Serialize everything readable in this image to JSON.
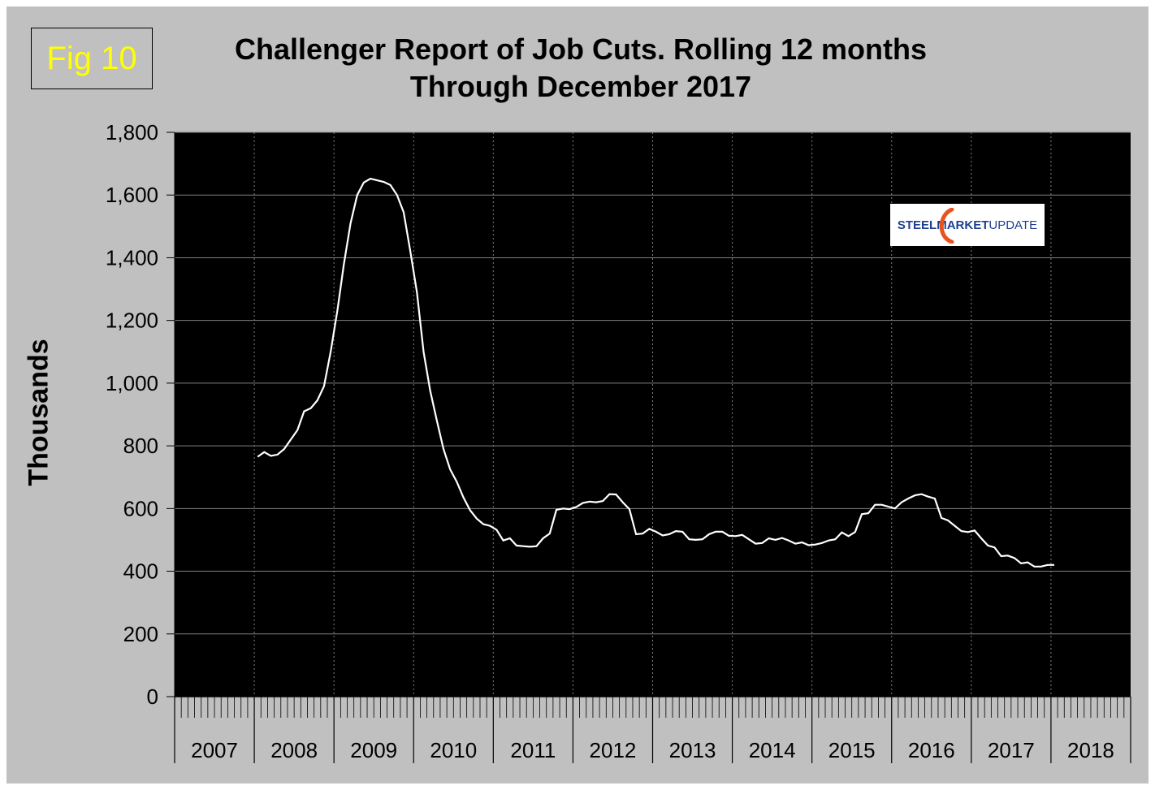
{
  "figure_label": "Fig 10",
  "logo": {
    "part1": "STEEL ",
    "part2": "MARKET ",
    "part3": "UPDATE"
  },
  "colors": {
    "frame_bg": "#c0c0c0",
    "plot_bg": "#000000",
    "line": "#ffffff",
    "gridline": "#808080",
    "badge_text": "#ffff00",
    "logo_orange": "#e8531e",
    "logo_blue": "#1f3f8f"
  },
  "chart_data": {
    "type": "line",
    "title_lines": [
      "Challenger Report of Job Cuts. Rolling 12 months",
      "Through December 2017"
    ],
    "xlabel": "",
    "ylabel": "Thousands",
    "ylim": [
      0,
      1800
    ],
    "yticks": [
      0,
      200,
      400,
      600,
      800,
      1000,
      1200,
      1400,
      1600,
      1800
    ],
    "ytick_labels": [
      "0",
      "200",
      "400",
      "600",
      "800",
      "1,000",
      "1,200",
      "1,400",
      "1,600",
      "1,800"
    ],
    "x_categories": [
      "2007",
      "2008",
      "2009",
      "2010",
      "2011",
      "2012",
      "2013",
      "2014",
      "2015",
      "2016",
      "2017",
      "2018"
    ],
    "x_start": "2007-01",
    "x_end": "2018-12",
    "grid": true,
    "legend": "none",
    "series": [
      {
        "values": [
          [
            "2008-01",
            765
          ],
          [
            "2008-02",
            780
          ],
          [
            "2008-03",
            768
          ],
          [
            "2008-04",
            772
          ],
          [
            "2008-05",
            790
          ],
          [
            "2008-06",
            820
          ],
          [
            "2008-07",
            850
          ],
          [
            "2008-08",
            910
          ],
          [
            "2008-09",
            920
          ],
          [
            "2008-10",
            945
          ],
          [
            "2008-11",
            990
          ],
          [
            "2008-12",
            1100
          ],
          [
            "2009-01",
            1230
          ],
          [
            "2009-02",
            1380
          ],
          [
            "2009-03",
            1510
          ],
          [
            "2009-04",
            1600
          ],
          [
            "2009-05",
            1640
          ],
          [
            "2009-06",
            1652
          ],
          [
            "2009-07",
            1647
          ],
          [
            "2009-08",
            1642
          ],
          [
            "2009-09",
            1632
          ],
          [
            "2009-10",
            1600
          ],
          [
            "2009-11",
            1545
          ],
          [
            "2009-12",
            1420
          ],
          [
            "2010-01",
            1290
          ],
          [
            "2010-02",
            1100
          ],
          [
            "2010-03",
            975
          ],
          [
            "2010-04",
            880
          ],
          [
            "2010-05",
            790
          ],
          [
            "2010-06",
            725
          ],
          [
            "2010-07",
            685
          ],
          [
            "2010-08",
            635
          ],
          [
            "2010-09",
            595
          ],
          [
            "2010-10",
            568
          ],
          [
            "2010-11",
            550
          ],
          [
            "2010-12",
            545
          ],
          [
            "2011-01",
            532
          ],
          [
            "2011-02",
            498
          ],
          [
            "2011-03",
            505
          ],
          [
            "2011-04",
            482
          ],
          [
            "2011-05",
            480
          ],
          [
            "2011-06",
            478
          ],
          [
            "2011-07",
            480
          ],
          [
            "2011-08",
            505
          ],
          [
            "2011-09",
            520
          ],
          [
            "2011-10",
            596
          ],
          [
            "2011-11",
            600
          ],
          [
            "2011-12",
            598
          ],
          [
            "2012-01",
            605
          ],
          [
            "2012-02",
            618
          ],
          [
            "2012-03",
            622
          ],
          [
            "2012-04",
            620
          ],
          [
            "2012-05",
            624
          ],
          [
            "2012-06",
            646
          ],
          [
            "2012-07",
            645
          ],
          [
            "2012-08",
            620
          ],
          [
            "2012-09",
            598
          ],
          [
            "2012-10",
            518
          ],
          [
            "2012-11",
            520
          ],
          [
            "2012-12",
            535
          ],
          [
            "2013-01",
            526
          ],
          [
            "2013-02",
            514
          ],
          [
            "2013-03",
            518
          ],
          [
            "2013-04",
            528
          ],
          [
            "2013-05",
            526
          ],
          [
            "2013-06",
            502
          ],
          [
            "2013-07",
            500
          ],
          [
            "2013-08",
            502
          ],
          [
            "2013-09",
            518
          ],
          [
            "2013-10",
            526
          ],
          [
            "2013-11",
            526
          ],
          [
            "2013-12",
            513
          ],
          [
            "2014-01",
            512
          ],
          [
            "2014-02",
            516
          ],
          [
            "2014-03",
            502
          ],
          [
            "2014-04",
            488
          ],
          [
            "2014-05",
            490
          ],
          [
            "2014-06",
            505
          ],
          [
            "2014-07",
            500
          ],
          [
            "2014-08",
            506
          ],
          [
            "2014-09",
            498
          ],
          [
            "2014-10",
            488
          ],
          [
            "2014-11",
            492
          ],
          [
            "2014-12",
            483
          ],
          [
            "2015-01",
            485
          ],
          [
            "2015-02",
            490
          ],
          [
            "2015-03",
            498
          ],
          [
            "2015-04",
            502
          ],
          [
            "2015-05",
            524
          ],
          [
            "2015-06",
            512
          ],
          [
            "2015-07",
            525
          ],
          [
            "2015-08",
            582
          ],
          [
            "2015-09",
            585
          ],
          [
            "2015-10",
            612
          ],
          [
            "2015-11",
            612
          ],
          [
            "2015-12",
            606
          ],
          [
            "2016-01",
            600
          ],
          [
            "2016-02",
            620
          ],
          [
            "2016-03",
            632
          ],
          [
            "2016-04",
            642
          ],
          [
            "2016-05",
            646
          ],
          [
            "2016-06",
            638
          ],
          [
            "2016-07",
            632
          ],
          [
            "2016-08",
            570
          ],
          [
            "2016-09",
            562
          ],
          [
            "2016-10",
            545
          ],
          [
            "2016-11",
            528
          ],
          [
            "2016-12",
            525
          ],
          [
            "2017-01",
            530
          ],
          [
            "2017-02",
            505
          ],
          [
            "2017-03",
            482
          ],
          [
            "2017-04",
            476
          ],
          [
            "2017-05",
            448
          ],
          [
            "2017-06",
            450
          ],
          [
            "2017-07",
            442
          ],
          [
            "2017-08",
            425
          ],
          [
            "2017-09",
            428
          ],
          [
            "2017-10",
            415
          ],
          [
            "2017-11",
            415
          ],
          [
            "2017-12",
            420
          ],
          [
            "2018-01",
            420
          ]
        ]
      }
    ]
  }
}
